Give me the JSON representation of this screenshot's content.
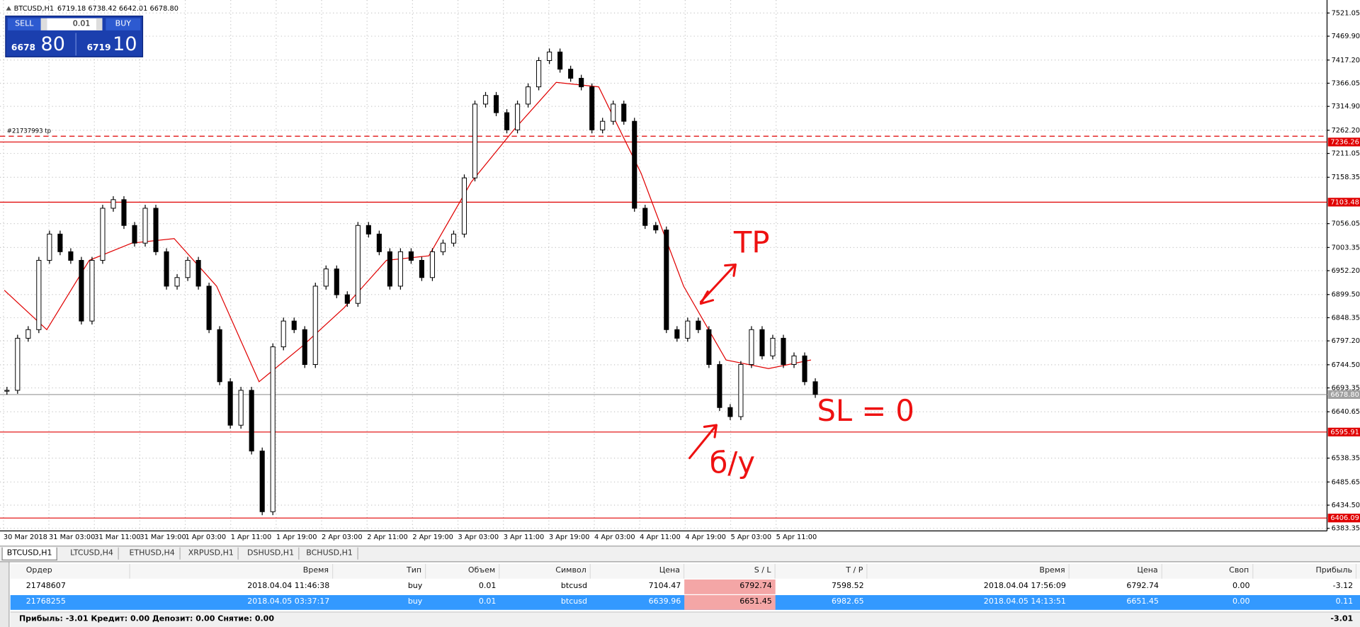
{
  "header": {
    "symbol": "BTCUSD,H1",
    "ohlc": "6719.18 6738.42 6642.01 6678.80"
  },
  "trade_panel": {
    "sell": "SELL",
    "buy": "BUY",
    "lot": "0.01",
    "sell_price_main": "6678",
    "sell_price_big": "80",
    "buy_price_main": "6719",
    "buy_price_big": "10"
  },
  "chart": {
    "type": "candlestick",
    "closes": [
      6688,
      6803,
      6822,
      6975,
      7033,
      6994,
      6975,
      6841,
      6975,
      7090,
      7109,
      7052,
      7013,
      7090,
      6994,
      6918,
      6937,
      6975,
      6918,
      6822,
      6707,
      6611,
      6688,
      6554,
      6420,
      6784,
      6841,
      6822,
      6745,
      6918,
      6956,
      6899,
      6880,
      7052,
      7033,
      6994,
      6918,
      6994,
      6975,
      6937,
      6994,
      7013,
      7033,
      7157,
      7320,
      7339,
      7301,
      7263,
      7320,
      7358,
      7416,
      7435,
      7397,
      7377,
      7358,
      7263,
      7282,
      7320,
      7282,
      7090,
      7052,
      7042,
      6822,
      6803,
      6841,
      6822,
      6745,
      6650,
      6630,
      6745,
      6822,
      6764,
      6803,
      6745,
      6764,
      6707,
      6679
    ],
    "moving_average": [
      6909,
      6822,
      6975,
      7013,
      7023,
      6918,
      6707,
      6784,
      6870,
      6975,
      6985,
      7148,
      7263,
      7368,
      7358,
      7167,
      6918,
      6755,
      6736,
      6755
    ],
    "ylim": [
      6383.35,
      7521.05
    ],
    "yticks": [
      {
        "value": 7521.05,
        "label": "7521.05"
      },
      {
        "value": 7469.9,
        "label": "7469.90"
      },
      {
        "value": 7417.2,
        "label": "7417.20"
      },
      {
        "value": 7366.05,
        "label": "7366.05"
      },
      {
        "value": 7314.9,
        "label": "7314.90"
      },
      {
        "value": 7262.2,
        "label": "7262.20"
      },
      {
        "value": 7211.05,
        "label": "7211.05"
      },
      {
        "value": 7158.35,
        "label": "7158.35"
      },
      {
        "value": 7056.05,
        "label": "7056.05"
      },
      {
        "value": 7003.35,
        "label": "7003.35"
      },
      {
        "value": 6952.2,
        "label": "6952.20"
      },
      {
        "value": 6899.5,
        "label": "6899.50"
      },
      {
        "value": 6848.35,
        "label": "6848.35"
      },
      {
        "value": 6797.2,
        "label": "6797.20"
      },
      {
        "value": 6744.5,
        "label": "6744.50"
      },
      {
        "value": 6693.35,
        "label": "6693.35"
      },
      {
        "value": 6640.65,
        "label": "6640.65"
      },
      {
        "value": 6538.35,
        "label": "6538.35"
      },
      {
        "value": 6485.65,
        "label": "6485.65"
      },
      {
        "value": 6434.5,
        "label": "6434.50"
      },
      {
        "value": 6383.35,
        "label": "6383.35"
      }
    ],
    "levels": [
      {
        "value": 7236.26,
        "label": "7236.26",
        "color": "#e00000"
      },
      {
        "value": 7103.48,
        "label": "7103.48",
        "color": "#e00000"
      },
      {
        "value": 6678.8,
        "label": "6678.80",
        "color": "#a0a0a0"
      },
      {
        "value": 6595.91,
        "label": "6595.91",
        "color": "#e00000"
      },
      {
        "value": 6406.09,
        "label": "6406.09",
        "color": "#e00000"
      }
    ],
    "tp_line": {
      "value": 7249,
      "label": "#21737993 tp",
      "color": "#e00000"
    },
    "ma_color": "#e00000",
    "x_labels": [
      "30 Mar 2018",
      "31 Mar 03:00",
      "31 Mar 11:00",
      "31 Mar 19:00",
      "1 Apr 03:00",
      "1 Apr 11:00",
      "1 Apr 19:00",
      "2 Apr 03:00",
      "2 Apr 11:00",
      "2 Apr 19:00",
      "3 Apr 03:00",
      "3 Apr 11:00",
      "3 Apr 19:00",
      "4 Apr 03:00",
      "4 Apr 11:00",
      "4 Apr 19:00",
      "5 Apr 03:00",
      "5 Apr 11:00"
    ]
  },
  "annotations": {
    "tp": "TP",
    "sl": "SL = 0",
    "be": "б/у"
  },
  "tabs": [
    "BTCUSD,H1",
    "LTCUSD,H4",
    "ETHUSD,H4",
    "XRPUSD,H1",
    "DSHUSD,H1",
    "BCHUSD,H1"
  ],
  "table": {
    "columns": [
      "Ордер",
      "Время",
      "Тип",
      "Объем",
      "Символ",
      "Цена",
      "S / L",
      "T / P",
      "Время",
      "Цена",
      "Своп",
      "Прибыль"
    ],
    "rows": [
      [
        "21748607",
        "2018.04.04 11:46:38",
        "buy",
        "0.01",
        "btcusd",
        "7104.47",
        "6792.74",
        "7598.52",
        "2018.04.04 17:56:09",
        "6792.74",
        "0.00",
        "-3.12"
      ],
      [
        "21768255",
        "2018.04.05 03:37:17",
        "buy",
        "0.01",
        "btcusd",
        "6639.96",
        "6651.45",
        "6982.65",
        "2018.04.05 14:13:51",
        "6651.45",
        "0.00",
        "0.11"
      ]
    ],
    "footer": "Прибыль: -3.01  Кредит: 0.00  Депозит: 0.00  Снятие: 0.00",
    "footer_total": "-3.01"
  }
}
